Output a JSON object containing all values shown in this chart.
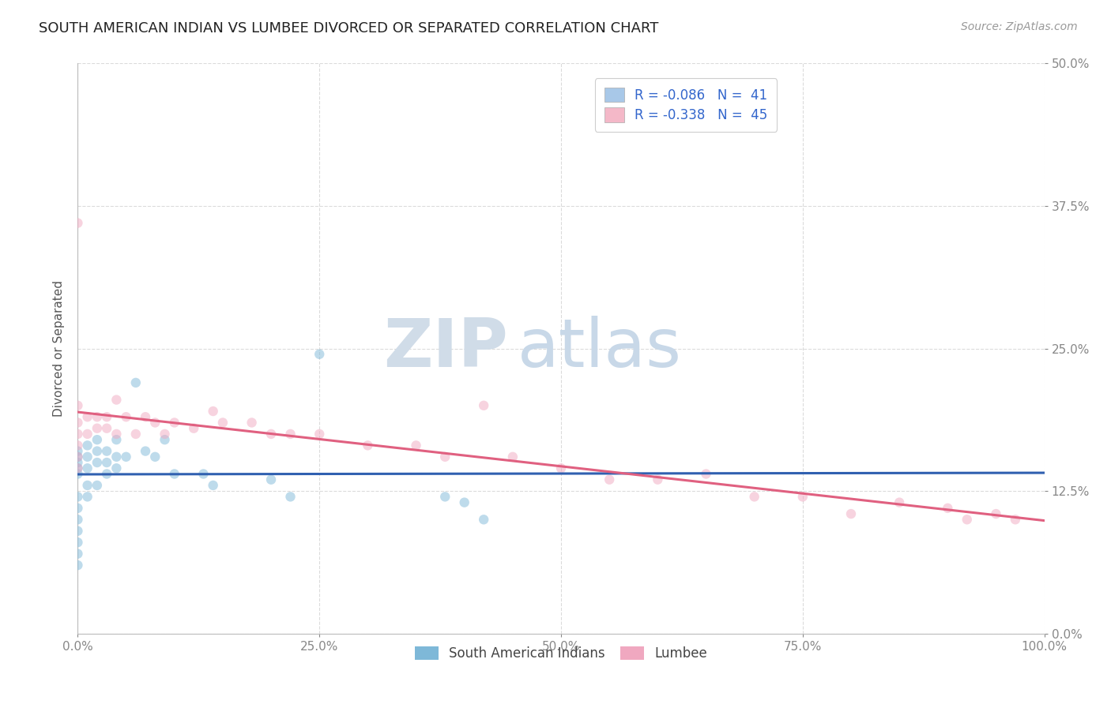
{
  "title": "SOUTH AMERICAN INDIAN VS LUMBEE DIVORCED OR SEPARATED CORRELATION CHART",
  "source": "Source: ZipAtlas.com",
  "xlabel_ticks": [
    "0.0%",
    "25.0%",
    "50.0%",
    "75.0%",
    "100.0%"
  ],
  "xlabel_tick_vals": [
    0.0,
    0.25,
    0.5,
    0.75,
    1.0
  ],
  "ylabel": "Divorced or Separated",
  "ylabel_ticks": [
    "0.0%",
    "12.5%",
    "25.0%",
    "37.5%",
    "50.0%"
  ],
  "ylabel_tick_vals": [
    0.0,
    0.125,
    0.25,
    0.375,
    0.5
  ],
  "xlim": [
    0.0,
    1.0
  ],
  "ylim": [
    0.0,
    0.5
  ],
  "background_color": "#ffffff",
  "legend_R_N": [
    {
      "R": "-0.086",
      "N": "41",
      "patch_color": "#a8c8e8"
    },
    {
      "R": "-0.338",
      "N": "45",
      "patch_color": "#f4b8c8"
    }
  ],
  "bottom_legend": [
    "South American Indians",
    "Lumbee"
  ],
  "bottom_legend_colors": [
    "#7eb8d8",
    "#f0a8c0"
  ],
  "series": [
    {
      "name": "South American Indians",
      "color": "#7eb8d8",
      "line_color": "#3060b0",
      "linestyle": "-",
      "x": [
        0.0,
        0.0,
        0.0,
        0.0,
        0.0,
        0.0,
        0.0,
        0.0,
        0.0,
        0.0,
        0.0,
        0.0,
        0.01,
        0.01,
        0.01,
        0.01,
        0.01,
        0.02,
        0.02,
        0.02,
        0.02,
        0.03,
        0.03,
        0.03,
        0.04,
        0.04,
        0.04,
        0.05,
        0.06,
        0.07,
        0.08,
        0.09,
        0.1,
        0.13,
        0.14,
        0.2,
        0.22,
        0.25,
        0.38,
        0.4,
        0.42
      ],
      "y": [
        0.14,
        0.145,
        0.15,
        0.155,
        0.16,
        0.12,
        0.11,
        0.1,
        0.09,
        0.08,
        0.07,
        0.06,
        0.145,
        0.155,
        0.165,
        0.13,
        0.12,
        0.15,
        0.16,
        0.17,
        0.13,
        0.15,
        0.16,
        0.14,
        0.155,
        0.17,
        0.145,
        0.155,
        0.22,
        0.16,
        0.155,
        0.17,
        0.14,
        0.14,
        0.13,
        0.135,
        0.12,
        0.245,
        0.12,
        0.115,
        0.1
      ]
    },
    {
      "name": "Lumbee",
      "color": "#f0a8c0",
      "line_color": "#e06080",
      "linestyle": "-",
      "x": [
        0.0,
        0.0,
        0.0,
        0.0,
        0.0,
        0.0,
        0.0,
        0.01,
        0.01,
        0.02,
        0.02,
        0.03,
        0.03,
        0.04,
        0.04,
        0.05,
        0.06,
        0.07,
        0.08,
        0.09,
        0.1,
        0.12,
        0.14,
        0.15,
        0.18,
        0.2,
        0.22,
        0.25,
        0.3,
        0.35,
        0.38,
        0.42,
        0.45,
        0.5,
        0.55,
        0.6,
        0.65,
        0.7,
        0.75,
        0.8,
        0.85,
        0.9,
        0.92,
        0.95,
        0.97
      ],
      "y": [
        0.185,
        0.175,
        0.165,
        0.155,
        0.145,
        0.2,
        0.36,
        0.175,
        0.19,
        0.18,
        0.19,
        0.18,
        0.19,
        0.175,
        0.205,
        0.19,
        0.175,
        0.19,
        0.185,
        0.175,
        0.185,
        0.18,
        0.195,
        0.185,
        0.185,
        0.175,
        0.175,
        0.175,
        0.165,
        0.165,
        0.155,
        0.2,
        0.155,
        0.145,
        0.135,
        0.135,
        0.14,
        0.12,
        0.12,
        0.105,
        0.115,
        0.11,
        0.1,
        0.105,
        0.1
      ]
    }
  ],
  "title_fontsize": 13,
  "axis_label_fontsize": 11,
  "tick_fontsize": 11,
  "legend_fontsize": 12,
  "source_fontsize": 10,
  "marker_size": 80,
  "marker_alpha": 0.5,
  "grid_color": "#cccccc",
  "grid_alpha": 0.7,
  "line_width": 2.2
}
